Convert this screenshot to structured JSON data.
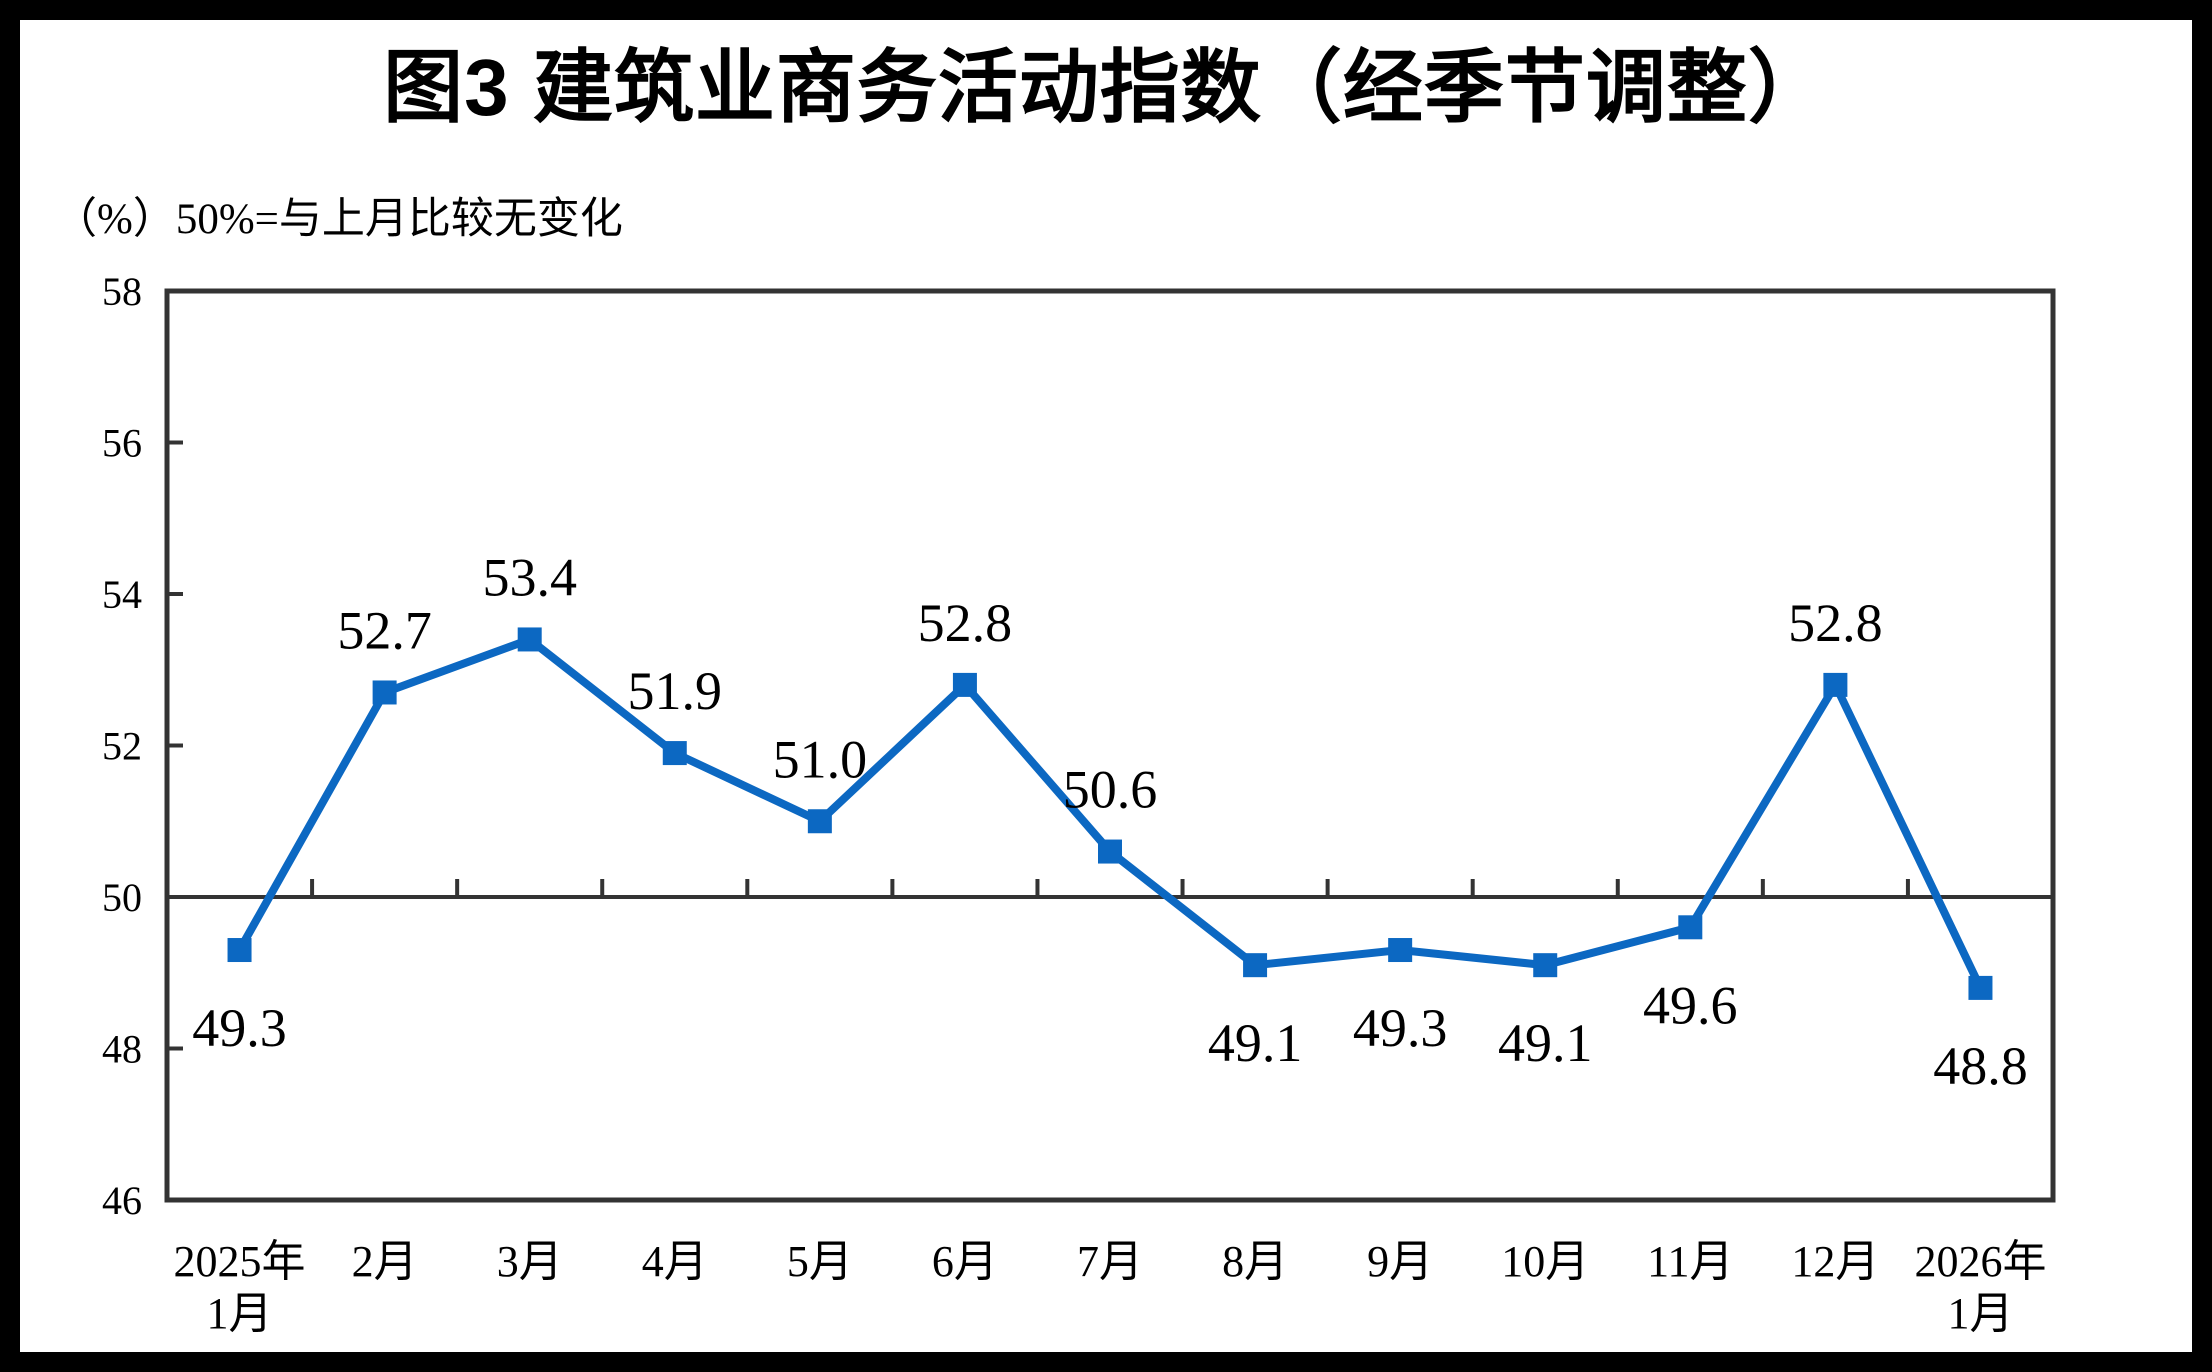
{
  "page": {
    "background_color": "#ffffff",
    "border_color": "#000000"
  },
  "chart_data": {
    "type": "line",
    "title": "图3  建筑业商务活动指数（经季节调整）",
    "subtitle": "（%）50%=与上月比较无变化",
    "unit_label": "（%）",
    "reference_note": "50%=与上月比较无变化",
    "categories": [
      [
        "2025年",
        "1月"
      ],
      [
        "2月"
      ],
      [
        "3月"
      ],
      [
        "4月"
      ],
      [
        "5月"
      ],
      [
        "6月"
      ],
      [
        "7月"
      ],
      [
        "8月"
      ],
      [
        "9月"
      ],
      [
        "10月"
      ],
      [
        "11月"
      ],
      [
        "12月"
      ],
      [
        "2026年",
        "1月"
      ]
    ],
    "values": [
      49.3,
      52.7,
      53.4,
      51.9,
      51.0,
      52.8,
      50.6,
      49.1,
      49.3,
      49.1,
      49.6,
      52.8,
      48.8
    ],
    "data_labels": [
      "49.3",
      "52.7",
      "53.4",
      "51.9",
      "51.0",
      "52.8",
      "50.6",
      "49.1",
      "49.3",
      "49.1",
      "49.6",
      "52.8",
      "48.8"
    ],
    "ylim": [
      46,
      58
    ],
    "ytick_step": 2,
    "ytick_labels": [
      "46",
      "48",
      "50",
      "52",
      "54",
      "56",
      "58"
    ],
    "reference_line": 50,
    "grid": false,
    "legend": "none",
    "marker": "square",
    "line_color": "#0c68c2",
    "axis_color": "#333333",
    "text_color": "#000000"
  }
}
